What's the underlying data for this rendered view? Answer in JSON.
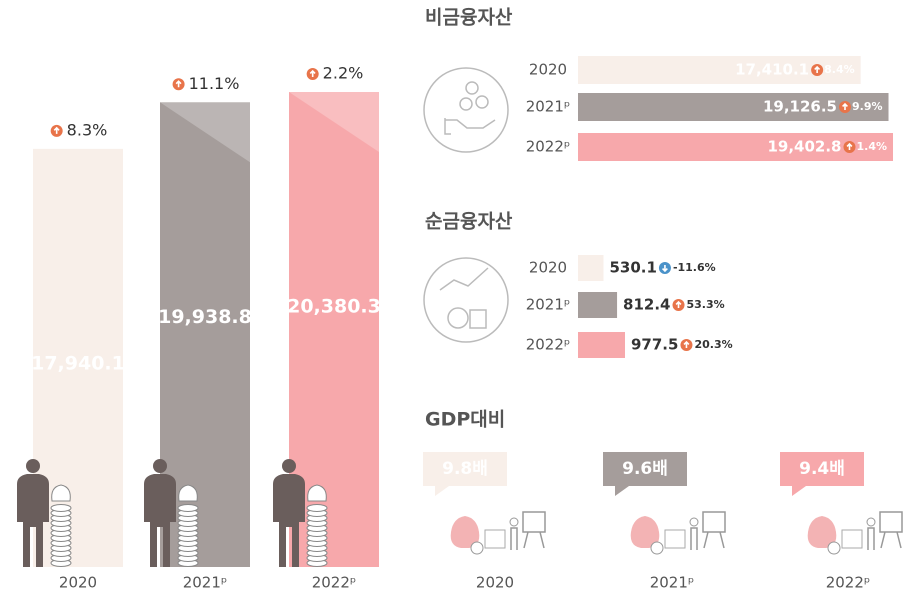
{
  "chart_data": [
    {
      "type": "bar",
      "categories": [
        "2020",
        "2021ᵖ",
        "2022ᵖ"
      ],
      "values": [
        17940.1,
        19938.8,
        20380.3
      ],
      "value_labels": [
        "17,940.1",
        "19,938.8",
        "20,380.3"
      ],
      "annotations": [
        "8.3%",
        "11.1%",
        "2.2%"
      ],
      "colors": [
        "#f8efe9",
        "#a59d9b",
        "#f7a8ab"
      ]
    },
    {
      "type": "hbar",
      "title": "비금융자산",
      "categories": [
        "2020",
        "2021ᵖ",
        "2022ᵖ"
      ],
      "values": [
        17410.1,
        19126.5,
        19402.8
      ],
      "value_labels": [
        "17,410.1",
        "19,126.5",
        "19,402.8"
      ],
      "annotations": [
        "8.4%",
        "9.9%",
        "1.4%"
      ],
      "colors": [
        "#f8efe9",
        "#a59d9b",
        "#f7a8ab"
      ]
    },
    {
      "type": "hbar",
      "title": "순금융자산",
      "categories": [
        "2020",
        "2021ᵖ",
        "2022ᵖ"
      ],
      "values": [
        530.1,
        812.4,
        977.5
      ],
      "value_labels": [
        "530.1",
        "812.4",
        "977.5"
      ],
      "annotations": [
        "-11.6%",
        "53.3%",
        "20.3%"
      ],
      "colors": [
        "#f8efe9",
        "#a59d9b",
        "#f7a8ab"
      ]
    },
    {
      "type": "callout",
      "title": "GDP대비",
      "categories": [
        "2020",
        "2021ᵖ",
        "2022ᵖ"
      ],
      "values": [
        9.8,
        9.6,
        9.4
      ],
      "value_labels": [
        "9.8배",
        "9.6배",
        "9.4배"
      ],
      "colors": [
        "#f8efe9",
        "#a59d9b",
        "#f7a8ab"
      ]
    }
  ]
}
